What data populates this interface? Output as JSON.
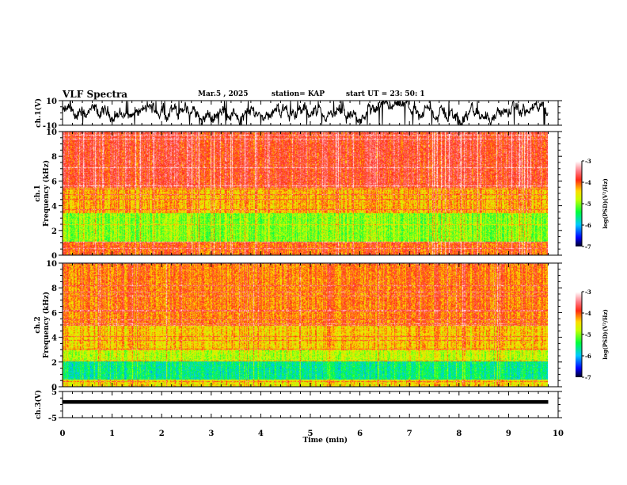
{
  "header": {
    "title": "VLF Spectra",
    "date": "Mar.5  , 2025",
    "station": "station= KAP",
    "start": "start  UT  =   23: 50: 1"
  },
  "colors": {
    "frame": "#000000",
    "high": "#ff2020",
    "mid": "#ffff00",
    "low": "#00ff80"
  },
  "chart_data": [
    {
      "type": "line",
      "name": "ch1-waveform",
      "ylabel": "ch.1(V)",
      "ylim": [
        -10,
        10
      ],
      "yticks": [
        "10",
        "-10"
      ],
      "xlim": [
        0,
        10
      ],
      "data_end_min": 9.8,
      "series": [
        {
          "name": "ch.1",
          "description_values": "noisy signal oscillating roughly between -10 and 10 V"
        }
      ]
    },
    {
      "type": "heatmap",
      "name": "ch1-spectrogram",
      "ylabel_top": "ch.1",
      "ylabel": "Frequency  (kHz)",
      "ylim": [
        0,
        10
      ],
      "yticks": [
        "0",
        "2",
        "4",
        "6",
        "8",
        "10"
      ],
      "xlim": [
        0,
        10
      ],
      "colorbar": {
        "label": "log(PSD)(V²/Hz)",
        "range": [
          -7,
          -3
        ],
        "ticks": [
          "-3",
          "-4",
          "-5",
          "-6",
          "-7"
        ]
      },
      "bands": [
        {
          "f_from": 5.5,
          "f_to": 10,
          "level": -3.8
        },
        {
          "f_from": 3.4,
          "f_to": 5.5,
          "level": -4.3
        },
        {
          "f_from": 1.1,
          "f_to": 3.4,
          "level": -5.0
        },
        {
          "f_from": 0,
          "f_to": 1.1,
          "level": -4.0
        }
      ]
    },
    {
      "type": "heatmap",
      "name": "ch2-spectrogram",
      "ylabel_top": "ch.2",
      "ylabel": "Frequency  (kHz)",
      "ylim": [
        0,
        10
      ],
      "yticks": [
        "0",
        "2",
        "4",
        "6",
        "8",
        "10"
      ],
      "xlim": [
        0,
        10
      ],
      "colorbar": {
        "label": "log(PSD)(V²/Hz)",
        "range": [
          -7,
          -3
        ],
        "ticks": [
          "-3",
          "-4",
          "-5",
          "-6",
          "-7"
        ]
      },
      "bands": [
        {
          "f_from": 5.0,
          "f_to": 10,
          "level": -4.1
        },
        {
          "f_from": 3.0,
          "f_to": 5.0,
          "level": -4.4
        },
        {
          "f_from": 2.1,
          "f_to": 3.0,
          "level": -4.8
        },
        {
          "f_from": 0.6,
          "f_to": 2.1,
          "level": -5.6
        },
        {
          "f_from": 0,
          "f_to": 0.6,
          "level": -4.5
        }
      ]
    },
    {
      "type": "line",
      "name": "ch3-waveform",
      "ylabel": "ch.3(V)",
      "ylim": [
        -5,
        5
      ],
      "yticks": [
        "5",
        "-5"
      ],
      "xlim": [
        0,
        10
      ],
      "xlabel": "Time  (min)",
      "xticks": [
        "0",
        "1",
        "2",
        "3",
        "4",
        "5",
        "6",
        "7",
        "8",
        "9",
        "10"
      ],
      "data_end_min": 9.8,
      "series": [
        {
          "name": "ch.3",
          "level_v": 1.0,
          "spread_v": 0.7
        }
      ]
    }
  ]
}
